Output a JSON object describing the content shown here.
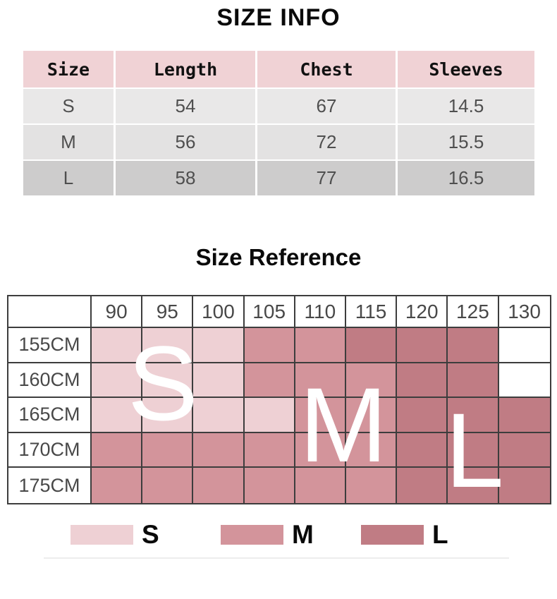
{
  "colors": {
    "header_pink": "#f0d2d5",
    "row_gray_s": "#e9e8e8",
    "row_gray_m": "#e3e2e2",
    "row_gray_l": "#cdcccc",
    "zone_S": "#eed0d4",
    "zone_M": "#d3949b",
    "zone_L": "#c07c84",
    "grid_line": "#3d3d3d",
    "overlay_letter": "#ffffff"
  },
  "chart_data": [
    {
      "type": "table",
      "title": "SIZE INFO",
      "columns": [
        "Size",
        "Length",
        "Chest",
        "Sleeves"
      ],
      "rows": [
        [
          "S",
          "54",
          "67",
          "14.5"
        ],
        [
          "M",
          "56",
          "72",
          "15.5"
        ],
        [
          "L",
          "58",
          "77",
          "16.5"
        ]
      ]
    },
    {
      "type": "heatmap",
      "title": "Size Reference",
      "x_labels": [
        "90",
        "95",
        "100",
        "105",
        "110",
        "115",
        "120",
        "125",
        "130"
      ],
      "y_labels": [
        "155CM",
        "160CM",
        "165CM",
        "170CM",
        "175CM"
      ],
      "values": [
        [
          "S",
          "S",
          "S",
          "M",
          "M",
          "L",
          "L",
          "L",
          ""
        ],
        [
          "S",
          "S",
          "S",
          "M",
          "M",
          "M",
          "L",
          "L",
          ""
        ],
        [
          "S",
          "S",
          "S",
          "S",
          "M",
          "M",
          "L",
          "L",
          "L"
        ],
        [
          "M",
          "M",
          "M",
          "M",
          "M",
          "M",
          "L",
          "L",
          "L"
        ],
        [
          "M",
          "M",
          "M",
          "M",
          "M",
          "M",
          "L",
          "L",
          "L"
        ]
      ],
      "overlay_labels": [
        "S",
        "M",
        "L"
      ],
      "legend": [
        {
          "label": "S",
          "zone": "S"
        },
        {
          "label": "M",
          "zone": "M"
        },
        {
          "label": "L",
          "zone": "L"
        }
      ],
      "legend_position": "bottom",
      "grid": true
    }
  ]
}
